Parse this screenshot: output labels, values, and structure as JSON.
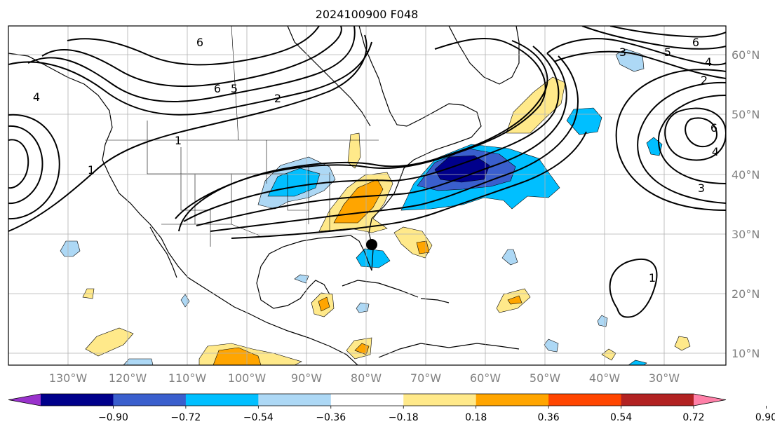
{
  "title": "2024100900 F048",
  "lon_labels": [
    "130°W",
    "120°W",
    "110°W",
    "100°W",
    "90°W",
    "80°W",
    "70°W",
    "60°W",
    "50°W",
    "40°W",
    "30°W"
  ],
  "lat_labels": [
    "60°N",
    "50°N",
    "40°N",
    "30°N",
    "20°N",
    "10°N"
  ],
  "extent": {
    "lon": [
      -138,
      -17
    ],
    "lat": [
      8,
      65
    ]
  },
  "colorbar": {
    "ticks": [
      "−0.90",
      "−0.72",
      "−0.54",
      "−0.36",
      "−0.18",
      "0.18",
      "0.36",
      "0.54",
      "0.72",
      "0.90"
    ],
    "colors": [
      "#9932cc",
      "#00008b",
      "#3a5fcd",
      "#00bfff",
      "#add8f5",
      "#ffffff",
      "#ffe98a",
      "#ffa500",
      "#ff4500",
      "#b22222",
      "#ff80a8"
    ]
  },
  "marker": {
    "lon": -80.5,
    "lat": 28.3
  },
  "contour_labels": [
    "6",
    "6",
    "5",
    "2",
    "1",
    "1",
    "6",
    "5",
    "4",
    "2",
    "6",
    "4",
    "3",
    "1",
    "3",
    "4"
  ]
}
